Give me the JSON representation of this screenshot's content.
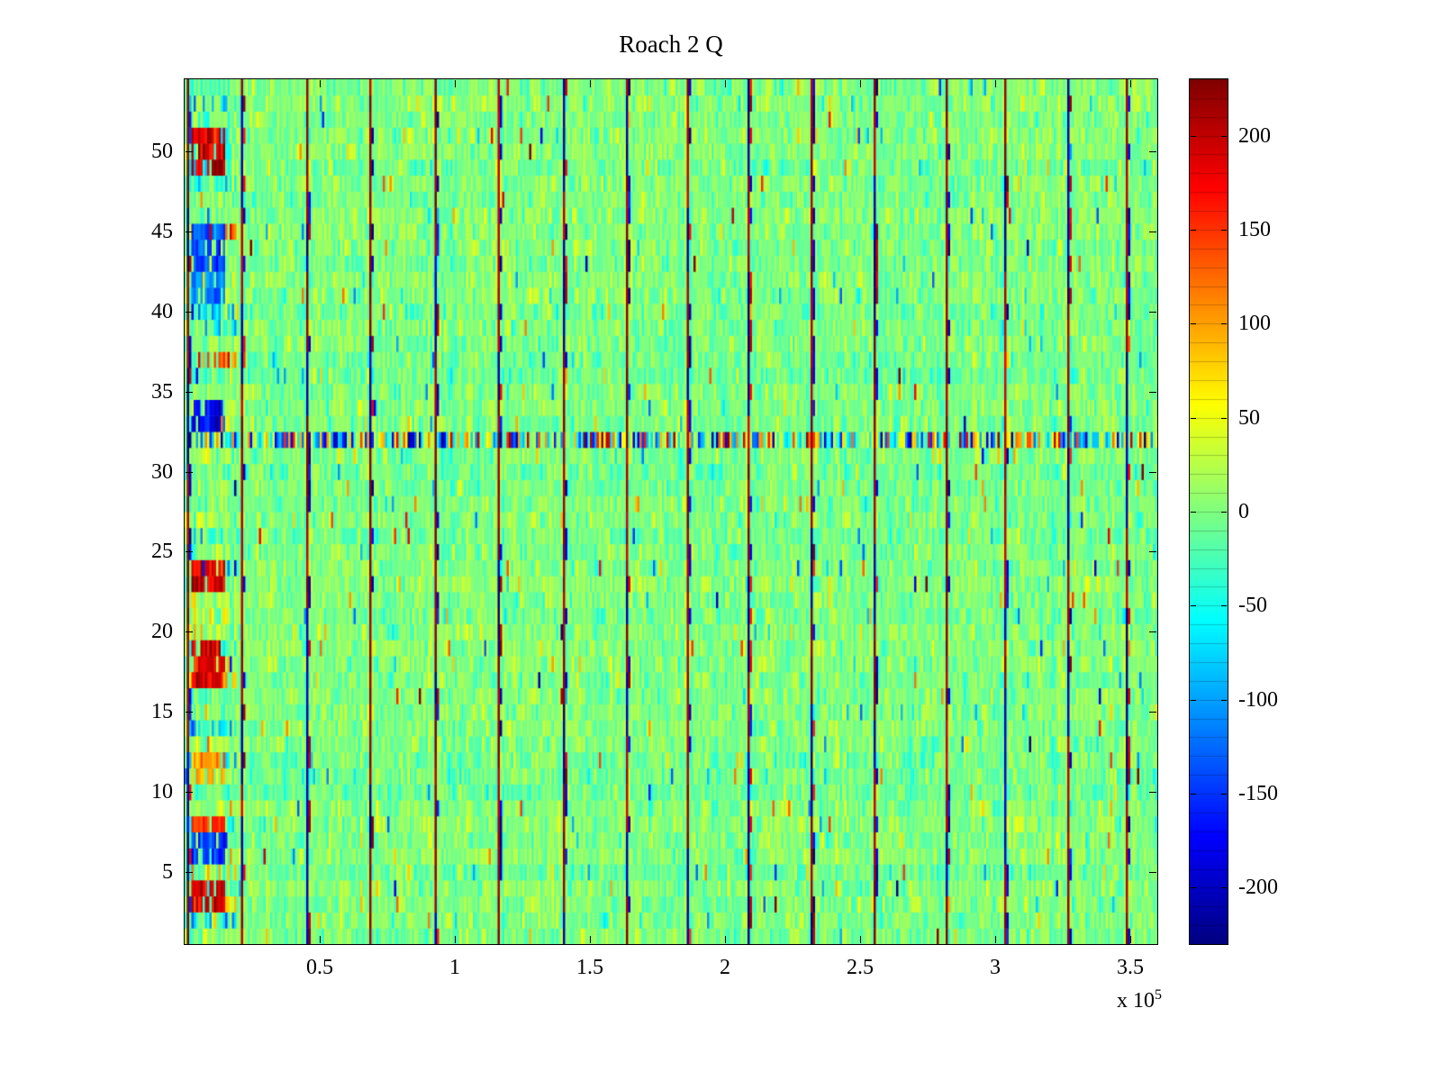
{
  "figure": {
    "title": "Roach 2 Q",
    "x_scale_base": "x 10",
    "x_scale_exp": "5"
  },
  "chart_data": {
    "type": "heatmap",
    "title": "Roach 2 Q",
    "colormap": "jet",
    "xlabel": "",
    "ylabel": "",
    "xlim": [
      0,
      360000
    ],
    "ylim": [
      0.5,
      54.5
    ],
    "rows": 54,
    "x_tick_scale": "x 10^5",
    "x_ticks": [
      {
        "label": "0.5",
        "value": 50000
      },
      {
        "label": "1",
        "value": 100000
      },
      {
        "label": "1.5",
        "value": 150000
      },
      {
        "label": "2",
        "value": 200000
      },
      {
        "label": "2.5",
        "value": 250000
      },
      {
        "label": "3",
        "value": 300000
      },
      {
        "label": "3.5",
        "value": 350000
      }
    ],
    "y_ticks": [
      {
        "label": "5",
        "value": 5
      },
      {
        "label": "10",
        "value": 10
      },
      {
        "label": "15",
        "value": 15
      },
      {
        "label": "20",
        "value": 20
      },
      {
        "label": "25",
        "value": 25
      },
      {
        "label": "30",
        "value": 30
      },
      {
        "label": "35",
        "value": 35
      },
      {
        "label": "40",
        "value": 40
      },
      {
        "label": "45",
        "value": 45
      },
      {
        "label": "50",
        "value": 50
      }
    ],
    "colorbar": {
      "min": -230,
      "max": 230,
      "band_step": 10,
      "ticks": [
        {
          "label": "200",
          "value": 200
        },
        {
          "label": "150",
          "value": 150
        },
        {
          "label": "100",
          "value": 100
        },
        {
          "label": "50",
          "value": 50
        },
        {
          "label": "0",
          "value": 0
        },
        {
          "label": "-50",
          "value": -50
        },
        {
          "label": "-100",
          "value": -100
        },
        {
          "label": "-150",
          "value": -150
        },
        {
          "label": "-200",
          "value": -200
        }
      ]
    },
    "noise": {
      "mean": 0,
      "std": 18,
      "outlier_fraction": 0.06,
      "description": "speckled random field, mostly near zero (green) with scattered cyan/yellow/orange outliers"
    },
    "features": {
      "vertical_stripes_x": [
        800,
        21000,
        45000,
        68000,
        92500,
        116000,
        140000,
        163000,
        186000,
        208500,
        232000,
        255000,
        281500,
        303500,
        326500,
        348500
      ],
      "anomalous_row_y": 32,
      "left_edge_activity_x_max": 16000,
      "left_edge_blobs": [
        {
          "y": 50,
          "rows": 3,
          "value": 210
        },
        {
          "y": 44.5,
          "rows": 3,
          "value": -150
        },
        {
          "y": 41.5,
          "rows": 2,
          "value": -120
        },
        {
          "y": 33.5,
          "rows": 2,
          "value": -185
        },
        {
          "y": 24,
          "rows": 2,
          "value": 200
        },
        {
          "y": 18.5,
          "rows": 3,
          "value": 205
        },
        {
          "y": 11.5,
          "rows": 2,
          "value": 110
        },
        {
          "y": 8.5,
          "rows": 1,
          "value": 160
        },
        {
          "y": 6.5,
          "rows": 2,
          "value": -150
        },
        {
          "y": 3.5,
          "rows": 2,
          "value": 205
        }
      ]
    }
  }
}
